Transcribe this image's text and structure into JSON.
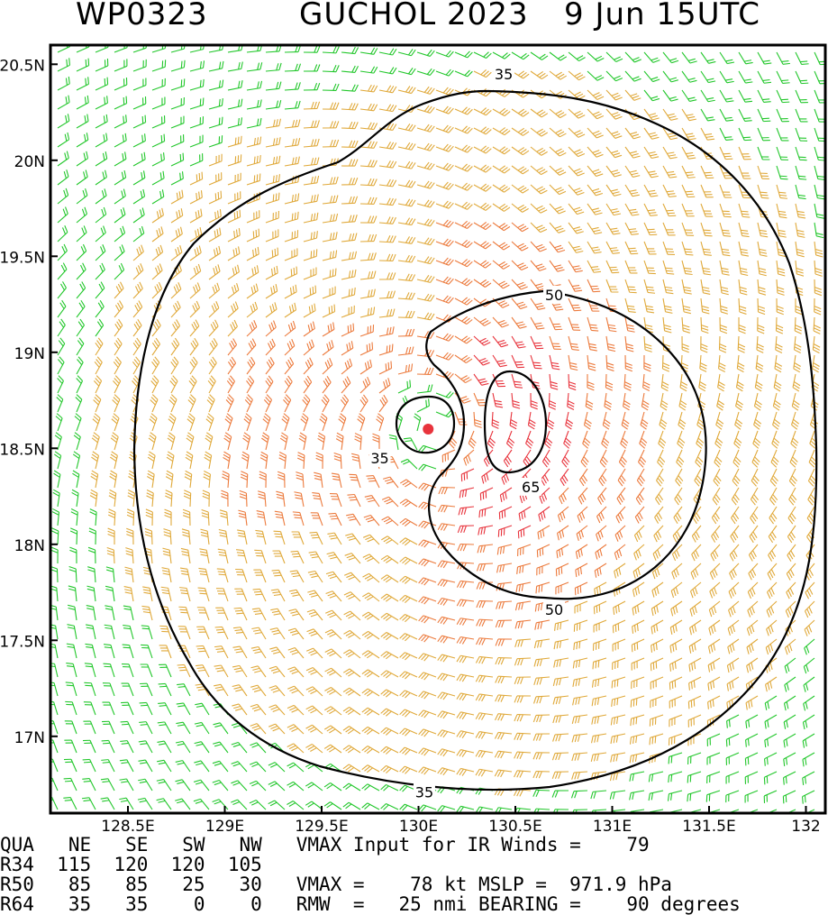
{
  "title": {
    "storm_id": "WP0323",
    "storm_name_year": "GUCHOL 2023",
    "datetime": "9 Jun 15UTC"
  },
  "map": {
    "lat_range": [
      16.6,
      20.6
    ],
    "lon_range": [
      128.1,
      132.1
    ],
    "lat_ticks": [
      {
        "value": 20.5,
        "label": "20.5N"
      },
      {
        "value": 20.0,
        "label": "20N"
      },
      {
        "value": 19.5,
        "label": "19.5N"
      },
      {
        "value": 19.0,
        "label": "19N"
      },
      {
        "value": 18.5,
        "label": "18.5N"
      },
      {
        "value": 18.0,
        "label": "18N"
      },
      {
        "value": 17.5,
        "label": "17.5N"
      },
      {
        "value": 17.0,
        "label": "17N"
      }
    ],
    "lon_ticks": [
      {
        "value": 128.5,
        "label": "128.5E"
      },
      {
        "value": 129.0,
        "label": "129E"
      },
      {
        "value": 129.5,
        "label": "129.5E"
      },
      {
        "value": 130.0,
        "label": "130E"
      },
      {
        "value": 130.5,
        "label": "130.5E"
      },
      {
        "value": 131.0,
        "label": "131E"
      },
      {
        "value": 131.5,
        "label": "131.5E"
      },
      {
        "value": 132.0,
        "label": "132"
      }
    ],
    "storm_center": {
      "lon": 130.05,
      "lat": 18.6
    },
    "contour_labels": [
      {
        "text": "35",
        "lon": 130.44,
        "lat": 20.45
      },
      {
        "text": "35",
        "lon": 129.8,
        "lat": 18.45
      },
      {
        "text": "35",
        "lon": 130.03,
        "lat": 16.71
      },
      {
        "text": "50",
        "lon": 130.7,
        "lat": 19.3
      },
      {
        "text": "50",
        "lon": 130.7,
        "lat": 17.66
      },
      {
        "text": "65",
        "lon": 130.58,
        "lat": 18.3
      }
    ],
    "colors": {
      "weak_winds": "#22c72b",
      "moderate_winds": "#e0a93a",
      "strong_winds": "#ec7a3c",
      "intense_winds": "#e8333c",
      "contour": "#000000",
      "center_marker": "#e8333c"
    }
  },
  "info": {
    "line1": "QUA   NE   SE   SW   NW   VMAX Input for IR Winds =    79",
    "line2": "R34  115  120  120  105",
    "line3": "R50   85   85   25   30   VMAX =    78 kt MSLP =  971.9 hPa",
    "line4": "R64   35   35    0    0   RMW  =   25 nmi BEARING =    90 degrees"
  }
}
